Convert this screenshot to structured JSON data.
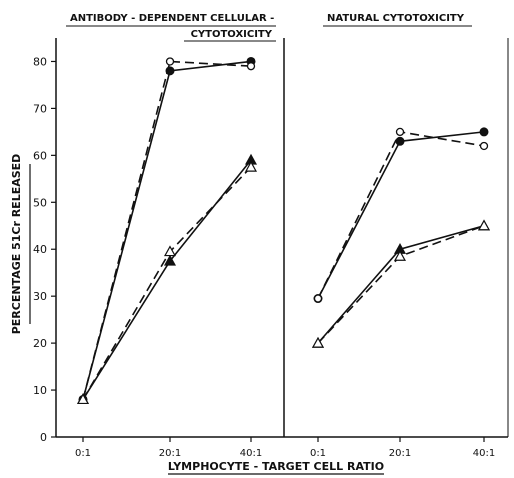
{
  "chart_data": [
    {
      "type": "line",
      "panel_title": "ANTIBODY - DEPENDENT CELLULAR - CYTOTOXICITY",
      "title_lines": [
        "ANTIBODY - DEPENDENT CELLULAR -",
        "CYTOTOXICITY"
      ],
      "categories": [
        "0:1",
        "20:1",
        "40:1"
      ],
      "ylabel": "PERCENTAGE 51Cr RELEASED",
      "ylim": [
        0,
        85
      ],
      "yticks": [
        0,
        10,
        20,
        30,
        40,
        50,
        60,
        70,
        80
      ],
      "grid": false,
      "series": [
        {
          "marker": "filled-circle",
          "line": "solid",
          "values": [
            8,
            78,
            80
          ]
        },
        {
          "marker": "open-circle",
          "line": "dashed",
          "values": [
            8,
            80,
            79
          ]
        },
        {
          "marker": "filled-triangle",
          "line": "solid",
          "values": [
            8,
            37.5,
            59
          ]
        },
        {
          "marker": "open-triangle",
          "line": "dashed",
          "values": [
            8,
            39.5,
            57.5
          ]
        }
      ]
    },
    {
      "type": "line",
      "panel_title": "NATURAL CYTOTOXICITY",
      "title_lines": [
        "NATURAL CYTOTOXICITY"
      ],
      "categories": [
        "0:1",
        "20:1",
        "40:1"
      ],
      "ylim": [
        0,
        85
      ],
      "grid": false,
      "series": [
        {
          "marker": "filled-circle",
          "line": "solid",
          "values": [
            29.5,
            63,
            65
          ]
        },
        {
          "marker": "open-circle",
          "line": "dashed",
          "values": [
            29.5,
            65,
            62
          ]
        },
        {
          "marker": "filled-triangle",
          "line": "solid",
          "values": [
            20,
            40,
            45
          ]
        },
        {
          "marker": "open-triangle",
          "line": "dashed",
          "values": [
            20,
            38.5,
            45
          ]
        }
      ]
    }
  ],
  "xlabel": "LYMPHOCYTE - TARGET CELL RATIO"
}
